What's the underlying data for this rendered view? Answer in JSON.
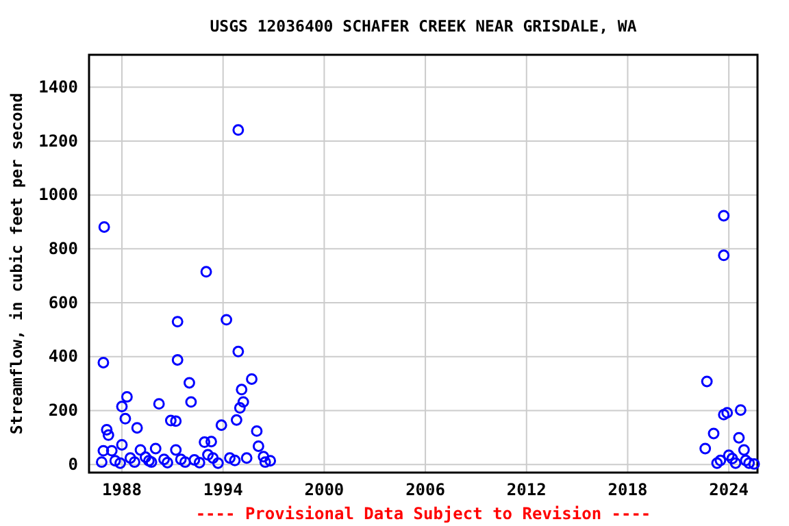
{
  "chart_data": {
    "type": "scatter",
    "title": "USGS 12036400 SCHAFER CREEK NEAR GRISDALE, WA",
    "ylabel": "Streamflow, in cubic feet per second",
    "annotations": [
      "---- Provisional Data Subject to Revision ----"
    ],
    "xlim": [
      1986.05,
      2025.7
    ],
    "xticks": [
      1988,
      1994,
      2000,
      2006,
      2012,
      2018,
      2024
    ],
    "ylim": [
      -30,
      1520
    ],
    "yticks": [
      0,
      200,
      400,
      600,
      800,
      1000,
      1200,
      1400
    ],
    "grid": true,
    "marker": "circle",
    "series": [
      {
        "color": "#0000ff",
        "x": [
          1986.95,
          1986.9,
          1987.1,
          1987.2,
          1986.9,
          1987.4,
          1986.8,
          1987.6,
          1987.9,
          1988.0,
          1988.0,
          1988.3,
          1988.2,
          1988.9,
          1988.5,
          1988.75,
          1989.1,
          1989.4,
          1989.6,
          1990.0,
          1989.75,
          1990.2,
          1990.5,
          1990.7,
          1990.9,
          1991.2,
          1991.3,
          1991.3,
          1991.2,
          1991.5,
          1991.75,
          1992.0,
          1992.1,
          1992.3,
          1992.6,
          1992.9,
          1993.3,
          1993.0,
          1993.1,
          1993.4,
          1993.7,
          1993.9,
          1994.2,
          1994.4,
          1994.7,
          1994.8,
          1994.9,
          1994.9,
          1995.0,
          1995.1,
          1995.2,
          1995.7,
          1995.4,
          1996.0,
          1996.1,
          1996.4,
          1996.5,
          1996.8,
          2023.7,
          2023.7,
          2022.7,
          2023.1,
          2022.6,
          2023.7,
          2023.9,
          2024.7,
          2024.6,
          2024.9,
          2023.3,
          2023.5,
          2024.0,
          2024.2,
          2024.4,
          2025.0,
          2025.2,
          2025.5
        ],
        "values": [
          881,
          378,
          129,
          109,
          51,
          51,
          9,
          14,
          5,
          73,
          215,
          251,
          170,
          136,
          24,
          9,
          54,
          27,
          14,
          59,
          9,
          225,
          19,
          7,
          163,
          161,
          530,
          388,
          54,
          19,
          9,
          303,
          232,
          17,
          7,
          83,
          85,
          715,
          36,
          24,
          5,
          146,
          537,
          24,
          15,
          165,
          1241,
          419,
          210,
          278,
          232,
          317,
          24,
          124,
          68,
          29,
          9,
          14,
          923,
          776,
          308,
          115,
          59,
          185,
          192,
          202,
          99,
          54,
          5,
          15,
          34,
          22,
          5,
          15,
          5,
          2
        ]
      }
    ]
  }
}
